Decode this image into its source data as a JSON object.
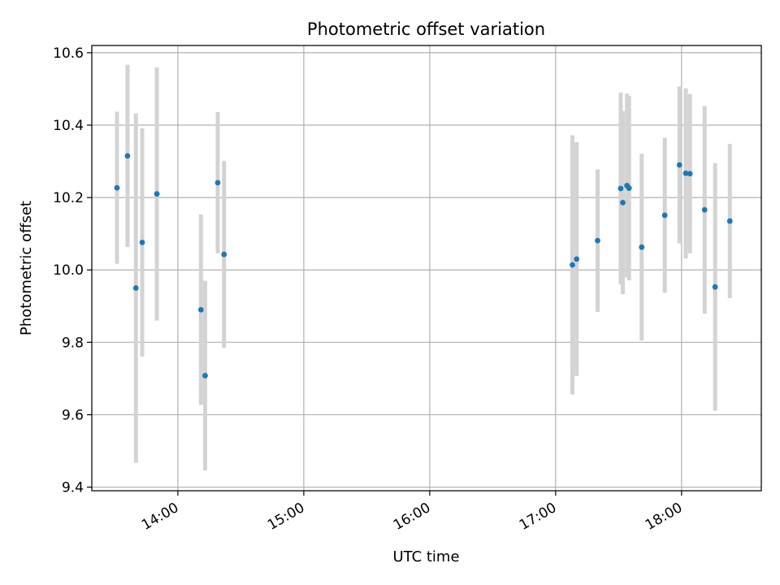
{
  "chart_data": {
    "type": "scatter",
    "title": "Photometric offset variation",
    "xlabel": "UTC time",
    "ylabel": "Photometric offset",
    "xlim": [
      "13:19",
      "18:38"
    ],
    "ylim": [
      9.39,
      10.62
    ],
    "grid": true,
    "x_ticks": [
      "14:00",
      "15:00",
      "16:00",
      "17:00",
      "18:00"
    ],
    "y_ticks": [
      9.4,
      9.6,
      9.8,
      10.0,
      10.2,
      10.4,
      10.6
    ],
    "y_tick_labels": [
      "9.4",
      "9.6",
      "9.8",
      "10.0",
      "10.2",
      "10.4",
      "10.6"
    ],
    "marker_color": "#1f77b4",
    "errorbar_color": "#d3d3d3",
    "points": [
      {
        "x": "13:31",
        "y": 10.227,
        "err": 0.21
      },
      {
        "x": "13:36",
        "y": 10.315,
        "err": 0.252
      },
      {
        "x": "13:40",
        "y": 9.95,
        "err": 0.483
      },
      {
        "x": "13:43",
        "y": 10.076,
        "err": 0.315
      },
      {
        "x": "13:50",
        "y": 10.21,
        "err": 0.35
      },
      {
        "x": "14:11",
        "y": 9.89,
        "err": 0.263
      },
      {
        "x": "14:13",
        "y": 9.708,
        "err": 0.262
      },
      {
        "x": "14:19",
        "y": 10.241,
        "err": 0.195
      },
      {
        "x": "14:22",
        "y": 10.043,
        "err": 0.258
      },
      {
        "x": "17:08",
        "y": 10.014,
        "err": 0.358
      },
      {
        "x": "17:10",
        "y": 10.03,
        "err": 0.323
      },
      {
        "x": "17:20",
        "y": 10.081,
        "err": 0.197
      },
      {
        "x": "17:31",
        "y": 10.225,
        "err": 0.265
      },
      {
        "x": "17:32",
        "y": 10.186,
        "err": 0.253
      },
      {
        "x": "17:34",
        "y": 10.233,
        "err": 0.254
      },
      {
        "x": "17:35",
        "y": 10.226,
        "err": 0.255
      },
      {
        "x": "17:41",
        "y": 10.063,
        "err": 0.258
      },
      {
        "x": "17:52",
        "y": 10.151,
        "err": 0.214
      },
      {
        "x": "17:59",
        "y": 10.29,
        "err": 0.217
      },
      {
        "x": "18:02",
        "y": 10.267,
        "err": 0.235
      },
      {
        "x": "18:04",
        "y": 10.266,
        "err": 0.22
      },
      {
        "x": "18:11",
        "y": 10.166,
        "err": 0.287
      },
      {
        "x": "18:16",
        "y": 9.953,
        "err": 0.342
      },
      {
        "x": "18:23",
        "y": 10.135,
        "err": 0.213
      }
    ]
  }
}
